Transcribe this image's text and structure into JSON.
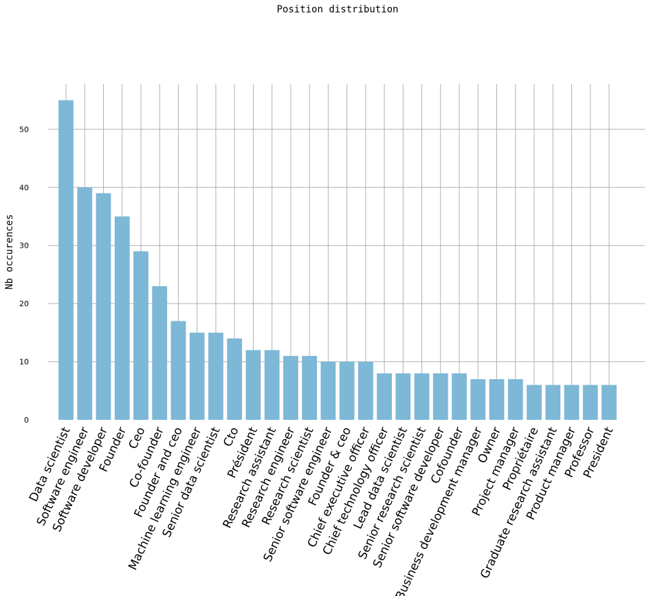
{
  "chart_data": {
    "type": "bar",
    "title": "Position distribution",
    "y_label": "Nb occurences",
    "categories": [
      "Data scientist",
      "Software engineer",
      "Software developer",
      "Founder",
      "Ceo",
      "Co-founder",
      "Founder and ceo",
      "Machine learning engineer",
      "Senior data scientist",
      "Cto",
      "Président",
      "Research assistant",
      "Research engineer",
      "Research scientist",
      "Senior software engineer",
      "Founder & ceo",
      "Chief executive officer",
      "Chief technology officer",
      "Lead data scientist",
      "Senior research scientist",
      "Senior software developer",
      "Cofounder",
      "Business development manager",
      "Owner",
      "Project manager",
      "Propriétaire",
      "Graduate research assistant",
      "Product manager",
      "Professor",
      "President"
    ],
    "values": [
      55,
      40,
      39,
      35,
      29,
      23,
      17,
      15,
      15,
      14,
      12,
      12,
      11,
      11,
      10,
      10,
      10,
      8,
      8,
      8,
      8,
      8,
      7,
      7,
      7,
      6,
      6,
      6,
      6,
      6
    ],
    "color": "#7db8d6",
    "ylim": [
      0,
      57.8
    ],
    "yticks": [
      0,
      10,
      20,
      30,
      40,
      50
    ],
    "grid": true
  }
}
